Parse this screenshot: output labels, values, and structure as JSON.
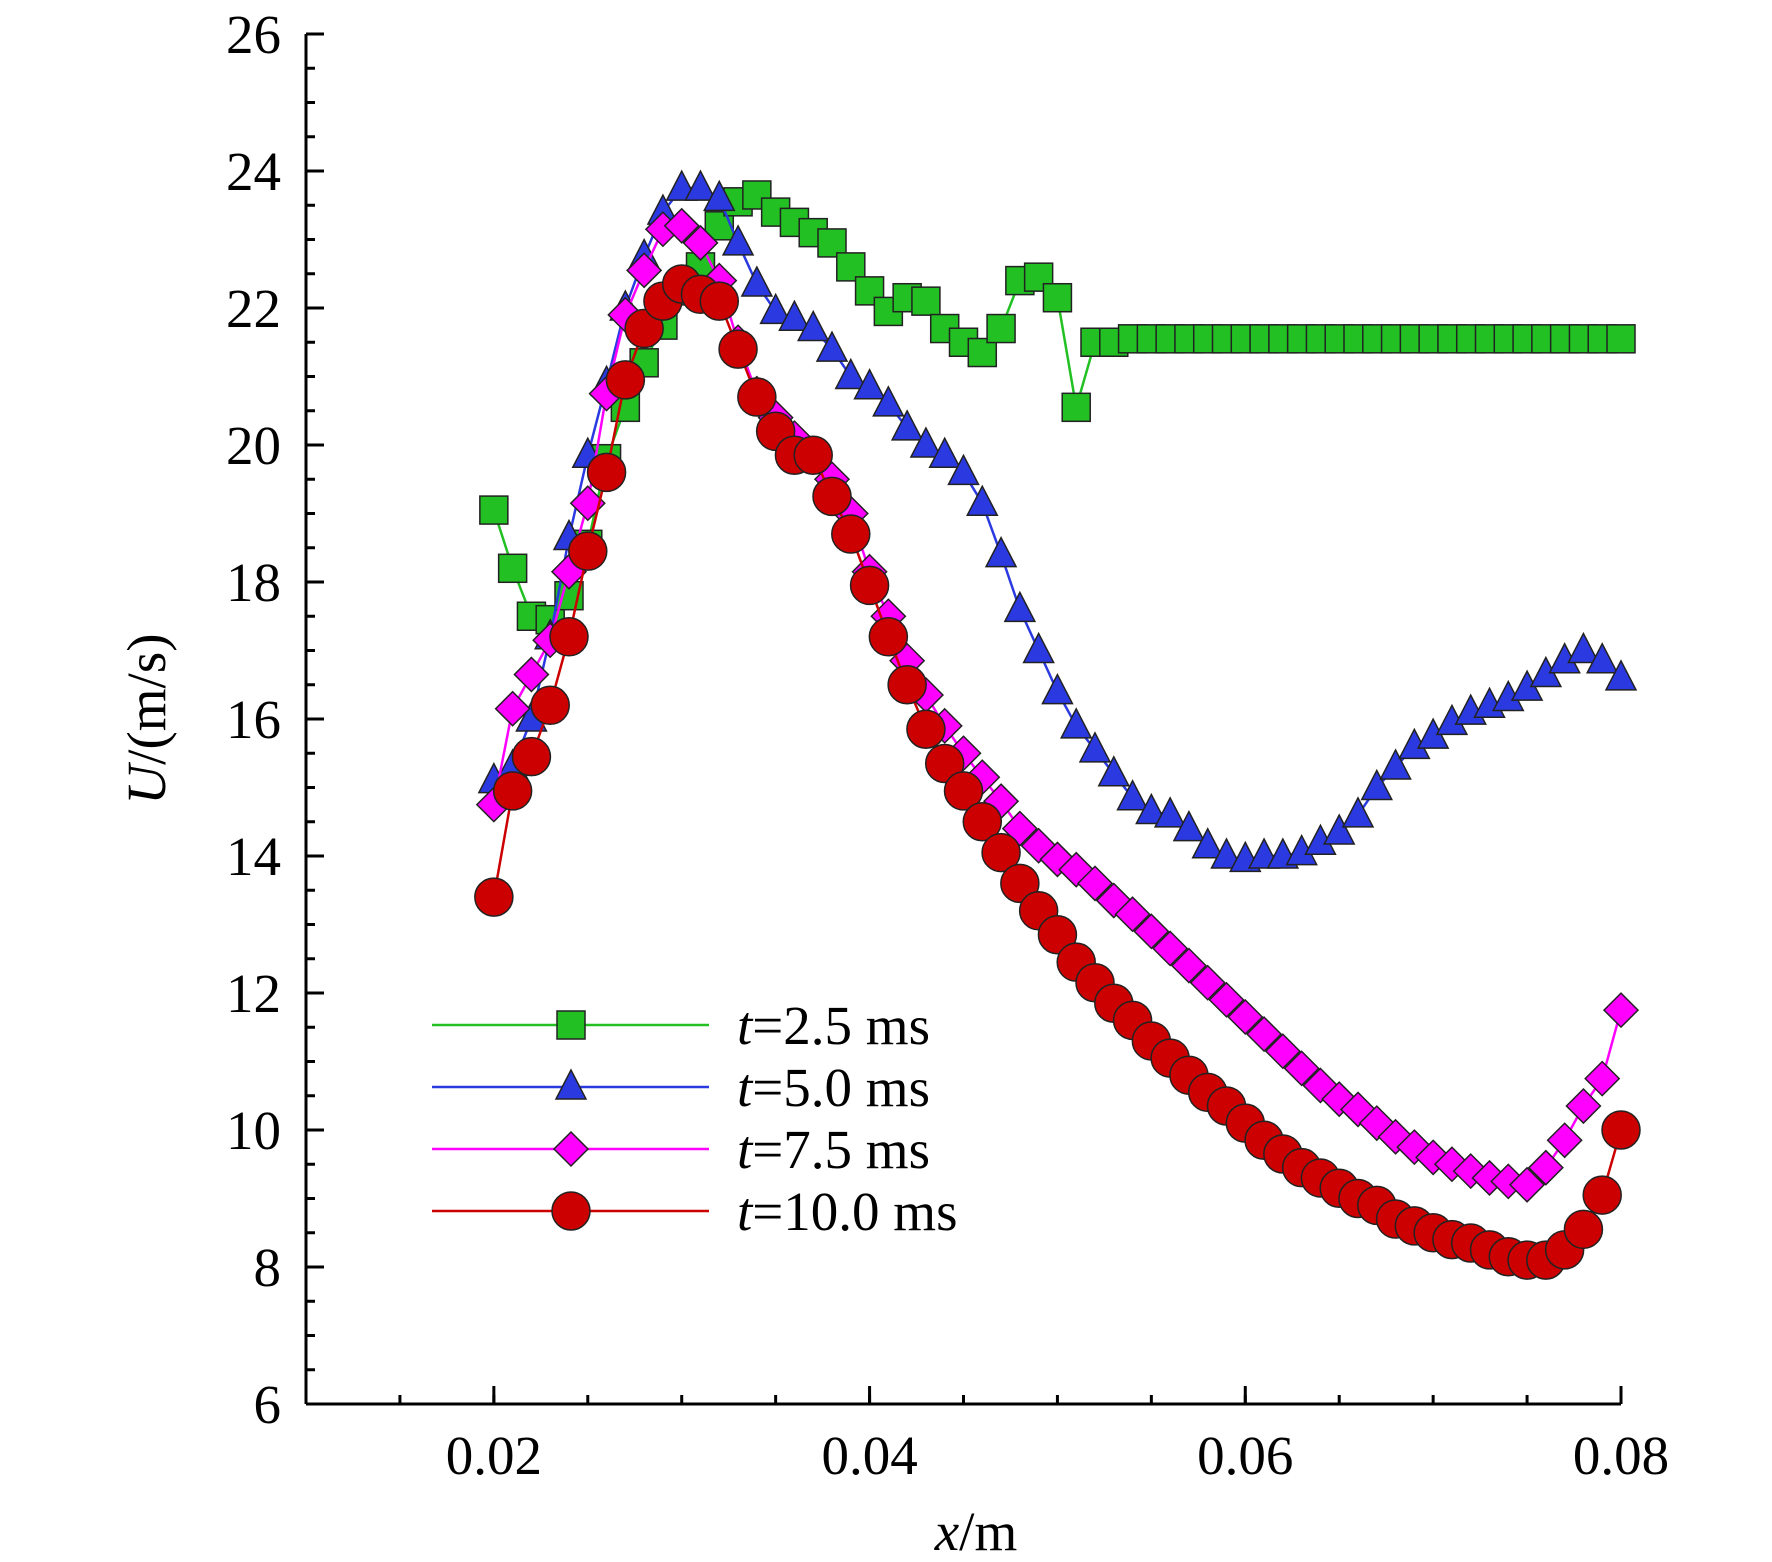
{
  "chart_data": {
    "type": "line",
    "xlabel": "x/m",
    "ylabel": "U/(m/s)",
    "x": [
      0.02,
      0.021,
      0.022,
      0.023,
      0.024,
      0.025,
      0.026,
      0.027,
      0.028,
      0.029,
      0.03,
      0.031,
      0.032,
      0.033,
      0.034,
      0.035,
      0.036,
      0.037,
      0.038,
      0.039,
      0.04,
      0.041,
      0.042,
      0.043,
      0.044,
      0.045,
      0.046,
      0.047,
      0.048,
      0.049,
      0.05,
      0.051,
      0.052,
      0.053,
      0.054,
      0.055,
      0.056,
      0.057,
      0.058,
      0.059,
      0.06,
      0.061,
      0.062,
      0.063,
      0.064,
      0.065,
      0.066,
      0.067,
      0.068,
      0.069,
      0.07,
      0.071,
      0.072,
      0.073,
      0.074,
      0.075,
      0.076,
      0.077,
      0.078,
      0.079,
      0.08
    ],
    "series": [
      {
        "name": "t=2.5 ms",
        "color": "#22c022",
        "marker": "square",
        "values": [
          19.05,
          18.2,
          17.5,
          17.45,
          17.8,
          18.55,
          19.8,
          20.55,
          21.2,
          21.75,
          22.25,
          22.6,
          23.2,
          23.55,
          23.65,
          23.4,
          23.25,
          23.1,
          22.95,
          22.6,
          22.25,
          21.95,
          22.15,
          22.1,
          21.7,
          21.5,
          21.35,
          21.7,
          22.4,
          22.45,
          22.15,
          20.55,
          21.5,
          21.5,
          21.55,
          21.55,
          21.55,
          21.55,
          21.55,
          21.55,
          21.55,
          21.55,
          21.55,
          21.55,
          21.55,
          21.55,
          21.55,
          21.55,
          21.55,
          21.55,
          21.55,
          21.55,
          21.55,
          21.55,
          21.55,
          21.55,
          21.55,
          21.55,
          21.55,
          21.55,
          21.55
        ]
      },
      {
        "name": "t=5.0 ms",
        "color": "#2a3ae0",
        "marker": "triangle",
        "values": [
          15.1,
          15.3,
          16.0,
          17.2,
          18.65,
          19.85,
          20.9,
          22.0,
          22.75,
          23.4,
          23.75,
          23.75,
          23.6,
          22.95,
          22.35,
          21.95,
          21.85,
          21.7,
          21.4,
          21.0,
          20.85,
          20.6,
          20.25,
          20.0,
          19.85,
          19.6,
          19.15,
          18.4,
          17.6,
          17.0,
          16.4,
          15.9,
          15.55,
          15.2,
          14.85,
          14.65,
          14.6,
          14.4,
          14.15,
          14.0,
          13.95,
          14.0,
          14.0,
          14.05,
          14.2,
          14.35,
          14.6,
          15.0,
          15.3,
          15.6,
          15.75,
          15.95,
          16.1,
          16.2,
          16.3,
          16.45,
          16.65,
          16.85,
          17.0,
          16.85,
          16.6
        ]
      },
      {
        "name": "t=7.5 ms",
        "color": "#ff00ff",
        "marker": "diamond",
        "values": [
          14.75,
          16.15,
          16.65,
          17.15,
          18.15,
          19.15,
          20.75,
          21.9,
          22.55,
          23.15,
          23.2,
          22.95,
          22.4,
          21.5,
          20.75,
          20.4,
          20.1,
          19.85,
          19.5,
          19.0,
          18.15,
          17.5,
          16.85,
          16.35,
          15.9,
          15.5,
          15.15,
          14.8,
          14.4,
          14.15,
          13.95,
          13.8,
          13.6,
          13.35,
          13.15,
          12.9,
          12.65,
          12.4,
          12.15,
          11.9,
          11.65,
          11.4,
          11.15,
          10.9,
          10.65,
          10.45,
          10.3,
          10.1,
          9.9,
          9.75,
          9.6,
          9.5,
          9.4,
          9.3,
          9.25,
          9.2,
          9.45,
          9.85,
          10.35,
          10.75,
          11.75
        ]
      },
      {
        "name": "t=10.0 ms",
        "color": "#cc0000",
        "marker": "circle",
        "values": [
          13.4,
          14.95,
          15.45,
          16.2,
          17.2,
          18.45,
          19.6,
          20.95,
          21.7,
          22.1,
          22.35,
          22.2,
          22.1,
          21.4,
          20.7,
          20.2,
          19.85,
          19.85,
          19.25,
          18.7,
          17.95,
          17.2,
          16.5,
          15.85,
          15.35,
          14.95,
          14.5,
          14.05,
          13.6,
          13.2,
          12.85,
          12.45,
          12.15,
          11.85,
          11.6,
          11.3,
          11.05,
          10.8,
          10.55,
          10.35,
          10.1,
          9.85,
          9.65,
          9.45,
          9.3,
          9.15,
          9.0,
          8.9,
          8.7,
          8.6,
          8.5,
          8.4,
          8.35,
          8.25,
          8.15,
          8.1,
          8.1,
          8.25,
          8.55,
          9.05,
          10.0
        ]
      }
    ],
    "xlim": [
      0.01,
      0.08
    ],
    "xticks": [
      0.02,
      0.04,
      0.06,
      0.08
    ],
    "xminor": 0.005,
    "ylim": [
      6,
      26
    ],
    "yticks": [
      6,
      8,
      10,
      12,
      14,
      16,
      18,
      20,
      22,
      24,
      26
    ],
    "yminor": 0.5,
    "legend": "lower left"
  }
}
